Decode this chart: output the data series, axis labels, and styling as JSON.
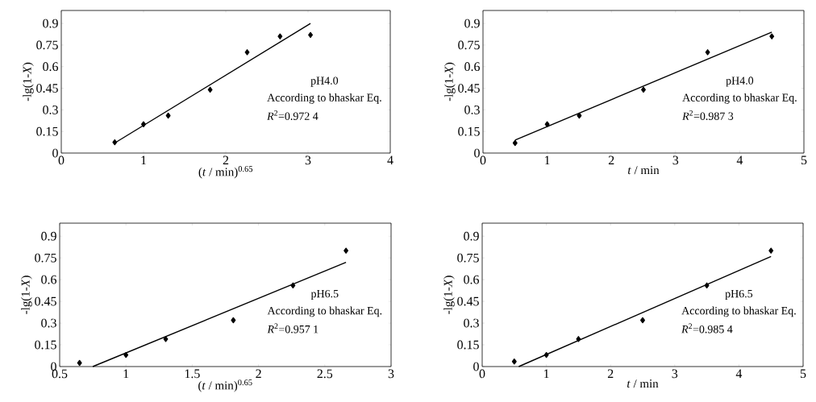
{
  "chart_data": [
    {
      "type": "scatter",
      "xlabel": "(*t* / min)$^{0.65}$",
      "ylabel": "-lg(1-*X*)",
      "xlim": [
        0,
        4
      ],
      "ylim": [
        0,
        0.99
      ],
      "xticks": [
        0,
        1,
        2,
        3,
        4
      ],
      "yticks": [
        0,
        0.15,
        0.3,
        0.45,
        0.6,
        0.75,
        0.9
      ],
      "marker": "diamond",
      "series": [
        {
          "color": "#000000",
          "x": [
            0.65,
            1.0,
            1.3,
            1.81,
            2.26,
            2.66,
            3.03
          ],
          "values": [
            0.075,
            0.2,
            0.26,
            0.44,
            0.7,
            0.81,
            0.82
          ]
        },
        {
          "type": "line",
          "color": "#000000",
          "marker": "none",
          "x": [
            0.65,
            3.03
          ],
          "values": [
            0.07,
            0.9
          ]
        }
      ],
      "annotations": [
        "pH4.0",
        "According to bhaskar Eq.",
        "*R*$^{2}$=0.972 4"
      ]
    },
    {
      "type": "scatter",
      "xlabel": "*t* / min",
      "ylabel": "-lg(1-*X*)",
      "xlim": [
        0,
        5
      ],
      "ylim": [
        0,
        0.99
      ],
      "xticks": [
        0,
        1,
        2,
        3,
        4,
        5
      ],
      "yticks": [
        0,
        0.15,
        0.3,
        0.45,
        0.6,
        0.75,
        0.9
      ],
      "marker": "diamond",
      "series": [
        {
          "color": "#000000",
          "x": [
            0.5,
            1,
            1.5,
            2.5,
            3.5,
            4.5
          ],
          "values": [
            0.07,
            0.2,
            0.26,
            0.44,
            0.7,
            0.81
          ]
        },
        {
          "type": "line",
          "color": "#000000",
          "marker": "none",
          "x": [
            0.5,
            4.5
          ],
          "values": [
            0.09,
            0.84
          ]
        }
      ],
      "annotations": [
        "pH4.0",
        "According to bhaskar Eq.",
        "*R*$^{2}$=0.987 3"
      ]
    },
    {
      "type": "scatter",
      "xlabel": "(*t* / min)$^{0.65}$",
      "ylabel": "-lg(1-*X*)",
      "xlim": [
        0.5,
        3
      ],
      "ylim": [
        0,
        0.99
      ],
      "xticks": [
        0.5,
        1,
        1.5,
        2,
        2.5,
        3
      ],
      "yticks": [
        0,
        0.15,
        0.3,
        0.45,
        0.6,
        0.75,
        0.9
      ],
      "marker": "diamond",
      "series": [
        {
          "color": "#000000",
          "x": [
            0.65,
            1.0,
            1.3,
            1.81,
            2.26,
            2.66
          ],
          "values": [
            0.025,
            0.08,
            0.19,
            0.32,
            0.56,
            0.8
          ]
        },
        {
          "type": "line",
          "color": "#000000",
          "marker": "none",
          "x": [
            0.75,
            2.66
          ],
          "values": [
            0,
            0.72
          ]
        }
      ],
      "annotations": [
        "pH6.5",
        "According to bhaskar Eq.",
        "*R*$^{2}$=0.957 1"
      ]
    },
    {
      "type": "scatter",
      "xlabel": "*t* / min",
      "ylabel": "-lg(1-*X*)",
      "xlim": [
        0,
        5
      ],
      "ylim": [
        0,
        0.99
      ],
      "xticks": [
        0,
        1,
        2,
        3,
        4,
        5
      ],
      "yticks": [
        0,
        0.15,
        0.3,
        0.45,
        0.6,
        0.75,
        0.9
      ],
      "marker": "diamond",
      "series": [
        {
          "color": "#000000",
          "x": [
            0.5,
            1,
            1.5,
            2.5,
            3.5,
            4.5
          ],
          "values": [
            0.035,
            0.08,
            0.19,
            0.32,
            0.56,
            0.8
          ]
        },
        {
          "type": "line",
          "color": "#000000",
          "marker": "none",
          "x": [
            0.57,
            4.5
          ],
          "values": [
            0,
            0.76
          ]
        }
      ],
      "annotations": [
        "pH6.5",
        "According to bhaskar Eq.",
        "*R*$^{2}$=0.985 4"
      ]
    }
  ]
}
